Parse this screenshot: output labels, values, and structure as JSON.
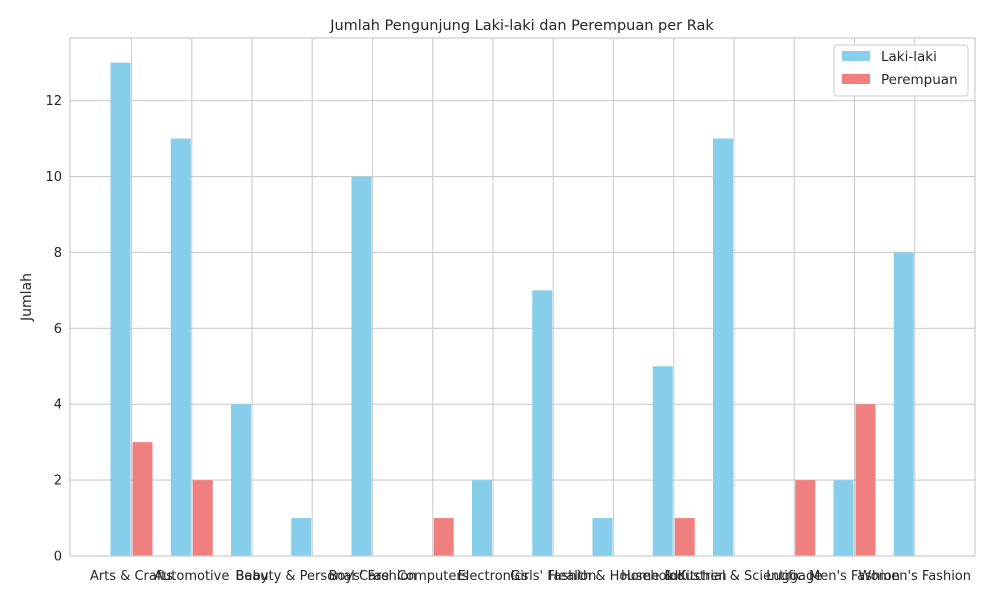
{
  "chart_data": {
    "type": "bar",
    "title": "Jumlah Pengunjung Laki-laki dan Perempuan per Rak",
    "xlabel": "",
    "ylabel": "Jumlah",
    "categories": [
      "Arts & Crafts",
      "Automotive",
      "Baby",
      "Beauty & Personal Care",
      "Boys' Fashion",
      "Computers",
      "Electronics",
      "Girls' Fashion",
      "Health & Household",
      "Home & Kitchen",
      "Industrial & Scientific",
      "Luggage",
      "Men's Fashion",
      "Women's Fashion"
    ],
    "series": [
      {
        "name": "Laki-laki",
        "color": "#87CEEB",
        "values": [
          13,
          11,
          4,
          1,
          10,
          0,
          2,
          7,
          1,
          5,
          11,
          0,
          2,
          8
        ]
      },
      {
        "name": "Perempuan",
        "color": "#F08080",
        "values": [
          3,
          2,
          0,
          0,
          0,
          1,
          0,
          0,
          0,
          1,
          0,
          2,
          4,
          0
        ]
      }
    ],
    "ylim": [
      0,
      13.65
    ],
    "yticks": [
      0,
      2,
      4,
      6,
      8,
      10,
      12
    ],
    "grid": true,
    "legend": "top-right"
  }
}
